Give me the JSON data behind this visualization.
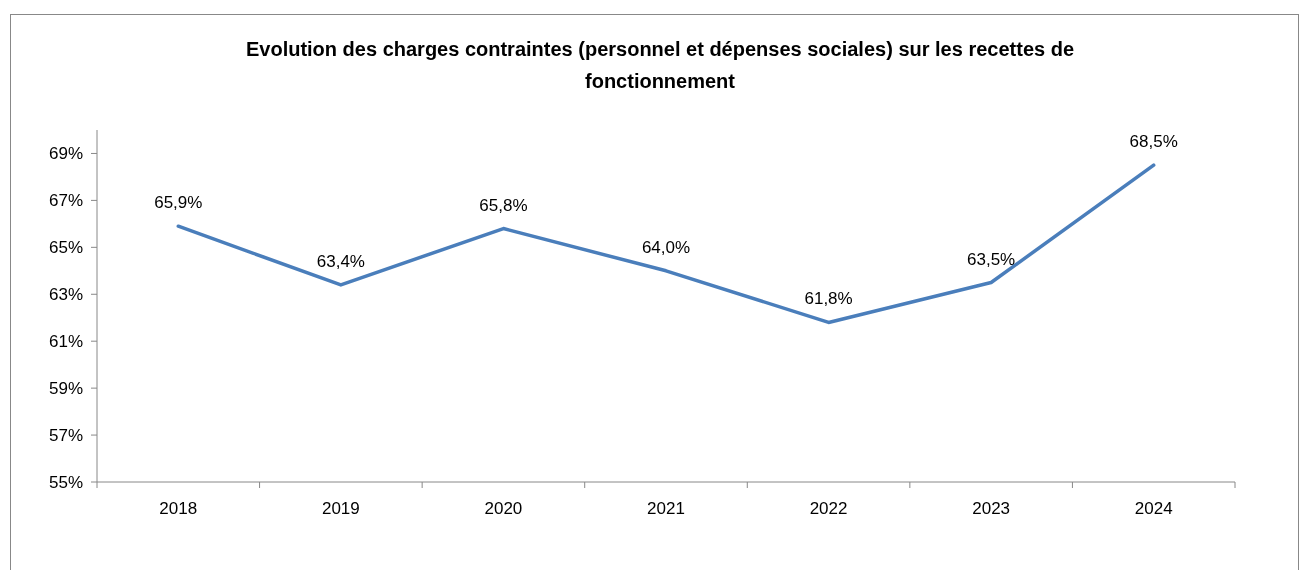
{
  "chart_data": {
    "type": "line",
    "title": "Evolution des charges contraintes (personnel et dépenses sociales) sur les recettes de fonctionnement",
    "categories": [
      "2018",
      "2019",
      "2020",
      "2021",
      "2022",
      "2023",
      "2024"
    ],
    "series": [
      {
        "color": "#4a7ebb",
        "values": [
          65.9,
          63.4,
          65.8,
          64.0,
          61.8,
          63.5,
          68.5
        ],
        "value_labels": [
          "65,9%",
          "63,4%",
          "65,8%",
          "64,0%",
          "61,8%",
          "63,5%",
          "68,5%"
        ]
      }
    ],
    "ylim": [
      55,
      70
    ],
    "yticks": [
      {
        "value": 55,
        "label": "55%"
      },
      {
        "value": 57,
        "label": "57%"
      },
      {
        "value": 59,
        "label": "59%"
      },
      {
        "value": 61,
        "label": "61%"
      },
      {
        "value": 63,
        "label": "63%"
      },
      {
        "value": 65,
        "label": "65%"
      },
      {
        "value": 67,
        "label": "67%"
      },
      {
        "value": 69,
        "label": "69%"
      }
    ],
    "grid": false,
    "marker": "none",
    "line_style": "solid"
  }
}
